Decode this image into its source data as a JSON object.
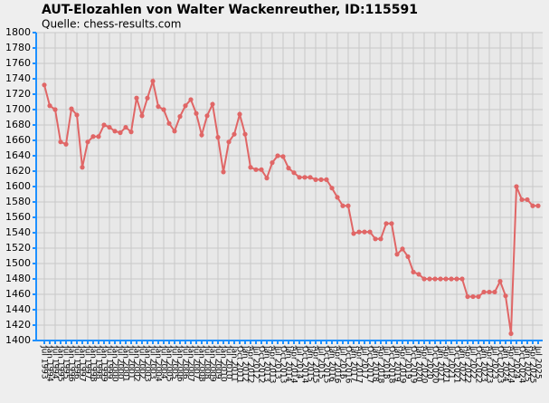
{
  "chart_data": {
    "type": "line",
    "title": "AUT-Elozahlen von Walter Wackenreuther, ID:115591",
    "subtitle": "Quelle: chess-results.com",
    "categories": [
      "Jul 1993",
      "Jan 1994",
      "Jul 1994",
      "Jan 1995",
      "Jul 1995",
      "Jan 1996",
      "Jul 1996",
      "Jan 1997",
      "Jul 1997",
      "Jan 1998",
      "Jul 1998",
      "Jan 1999",
      "Jul 1999",
      "Jan 2000",
      "Jul 2000",
      "Jan 2001",
      "Jul 2001",
      "Jan 2002",
      "Jul 2002",
      "Jan 2003",
      "Jul 2003",
      "Jan 2004",
      "Jul 2004",
      "Jan 2005",
      "Jul 2005",
      "Jan 2006",
      "Jul 2006",
      "Jan 2007",
      "Jul 2007",
      "Jan 2008",
      "Jul 2008",
      "Jan 2009",
      "Jul 2009",
      "Jan 2010",
      "Jul 2010",
      "Jan 2011",
      "Oct 2011",
      "Jan 2012",
      "Apr 2012",
      "Jul 2012",
      "Oct 2012",
      "Jan 2013",
      "Apr 2013",
      "Jul 2013",
      "Oct 2013",
      "Jan 2014",
      "Apr 2014",
      "Jul 2014",
      "Oct 2014",
      "Jan 2015",
      "Apr 2015",
      "Jul 2015",
      "Oct 2015",
      "Jan 2016",
      "Apr 2016",
      "Jul 2016",
      "Oct 2016",
      "Jan 2017",
      "Apr 2017",
      "Jul 2017",
      "Oct 2017",
      "Jan 2018",
      "Apr 2018",
      "Jul 2018",
      "Oct 2018",
      "Jan 2019",
      "Apr 2019",
      "Jul 2019",
      "Oct 2019",
      "Jan 2020",
      "Apr 2020",
      "Jul 2020",
      "Oct 2020",
      "Jan 2021",
      "Apr 2021",
      "Jul 2021",
      "Oct 2021",
      "Jan 2022",
      "Apr 2022",
      "Jul 2022",
      "Oct 2022",
      "Jan 2023",
      "Apr 2023",
      "Jul 2023",
      "Oct 2023",
      "Jan 2024",
      "Apr 2024",
      "Jul 2024",
      "Oct 2024",
      "Jan 2025",
      "Apr 2025",
      "Jul 2025"
    ],
    "series": [
      {
        "name": "Elo",
        "color": "#e06666",
        "values": [
          1732,
          1705,
          1700,
          1658,
          1655,
          1701,
          1693,
          1625,
          1658,
          1665,
          1665,
          1680,
          1677,
          1672,
          1670,
          1677,
          1671,
          1715,
          1692,
          1715,
          1737,
          1704,
          1700,
          1682,
          1672,
          1691,
          1705,
          1713,
          1695,
          1667,
          1692,
          1707,
          1664,
          1619,
          1658,
          1668,
          1694,
          1668,
          1625,
          1622,
          1622,
          1611,
          1631,
          1640,
          1639,
          1624,
          1618,
          1612,
          1612,
          1612,
          1609,
          1609,
          1609,
          1598,
          1586,
          1575,
          1575,
          1539,
          1541,
          1541,
          1541,
          1532,
          1532,
          1552,
          1552,
          1512,
          1519,
          1509,
          1489,
          1486,
          1480,
          1480,
          1480,
          1480,
          1480,
          1480,
          1480,
          1480,
          1457,
          1457,
          1457,
          1463,
          1463,
          1463,
          1477,
          1458,
          1409,
          1600,
          1583,
          1583,
          1575,
          1575
        ]
      }
    ],
    "ylim": [
      1400,
      1800
    ],
    "yticks": [
      1400,
      1420,
      1440,
      1460,
      1480,
      1500,
      1520,
      1540,
      1560,
      1580,
      1600,
      1620,
      1640,
      1660,
      1680,
      1700,
      1720,
      1740,
      1760,
      1780,
      1800
    ],
    "grid": true
  }
}
